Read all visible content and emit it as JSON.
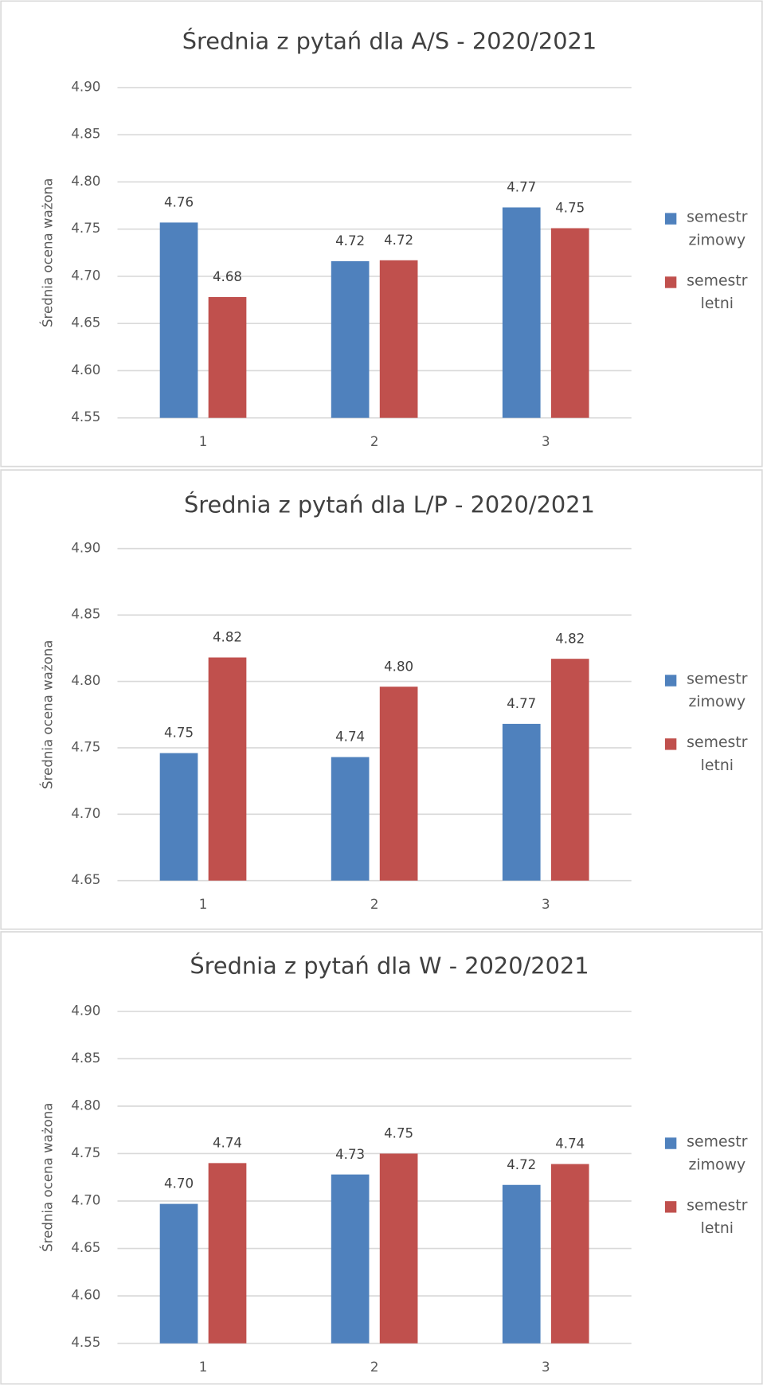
{
  "chart_data": [
    {
      "type": "bar",
      "title": "Średnia z pytań dla A/S - 2020/2021",
      "y_label": "Średnia ocena ważona",
      "categories": [
        "1",
        "2",
        "3"
      ],
      "series": [
        {
          "name": "semestr zimowy",
          "color": "#4f81bd",
          "values": [
            4.757,
            4.716,
            4.773
          ],
          "value_labels": [
            "4.76",
            "4.72",
            "4.77"
          ]
        },
        {
          "name": "semestr letni",
          "color": "#c0504d",
          "values": [
            4.678,
            4.717,
            4.751
          ],
          "value_labels": [
            "4.68",
            "4.72",
            "4.75"
          ]
        }
      ],
      "ylim": [
        4.55,
        4.9
      ],
      "yticks": [
        4.55,
        {
          "value": 4.6,
          "label": "4.60"
        },
        4.65,
        {
          "value": 4.7,
          "label": "4.70"
        },
        4.75,
        {
          "value": 4.8,
          "label": "4.80"
        },
        4.85,
        {
          "value": 4.9,
          "label": "4.90"
        }
      ],
      "grid": true,
      "legend": "right"
    },
    {
      "type": "bar",
      "title": "Średnia z pytań dla L/P - 2020/2021",
      "y_label": "Średnia ocena ważona",
      "categories": [
        "1",
        "2",
        "3"
      ],
      "series": [
        {
          "name": "semestr zimowy",
          "color": "#4f81bd",
          "values": [
            4.746,
            4.743,
            4.768
          ],
          "value_labels": [
            "4.75",
            "4.74",
            "4.77"
          ]
        },
        {
          "name": "semestr letni",
          "color": "#c0504d",
          "values": [
            4.818,
            4.796,
            4.817
          ],
          "value_labels": [
            "4.82",
            "4.80",
            "4.82"
          ]
        }
      ],
      "ylim": [
        4.65,
        4.9
      ],
      "yticks": [
        4.65,
        {
          "value": 4.7,
          "label": "4.70"
        },
        4.75,
        {
          "value": 4.8,
          "label": "4.80"
        },
        4.85,
        {
          "value": 4.9,
          "label": "4.90"
        }
      ],
      "grid": true,
      "legend": "right"
    },
    {
      "type": "bar",
      "title": "Średnia z pytań dla W - 2020/2021",
      "y_label": "Średnia ocena ważona",
      "categories": [
        "1",
        "2",
        "3"
      ],
      "series": [
        {
          "name": "semestr zimowy",
          "color": "#4f81bd",
          "values": [
            4.697,
            4.728,
            4.717
          ],
          "value_labels": [
            "4.70",
            "4.73",
            "4.72"
          ]
        },
        {
          "name": "semestr letni",
          "color": "#c0504d",
          "values": [
            4.74,
            4.75,
            4.739
          ],
          "value_labels": [
            "4.74",
            "4.75",
            "4.74"
          ]
        }
      ],
      "ylim": [
        4.55,
        4.9
      ],
      "yticks": [
        4.55,
        {
          "value": 4.6,
          "label": "4.60"
        },
        4.65,
        {
          "value": 4.7,
          "label": "4.70"
        },
        4.75,
        {
          "value": 4.8,
          "label": "4.80"
        },
        4.85,
        {
          "value": 4.9,
          "label": "4.90"
        }
      ],
      "grid": true,
      "legend": "right"
    }
  ]
}
